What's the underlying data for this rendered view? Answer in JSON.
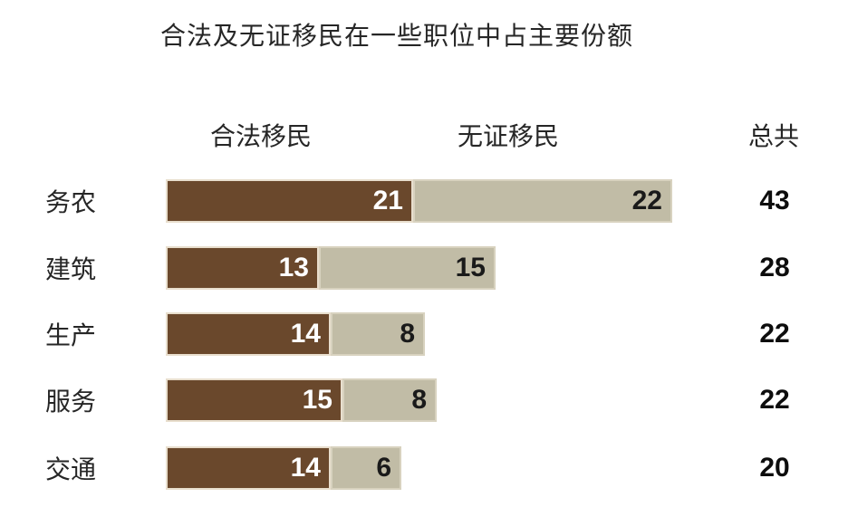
{
  "title": "合法及无证移民在一些职位中占主要份额",
  "chart_data": {
    "type": "bar",
    "orientation": "horizontal",
    "stacked": true,
    "axis_visible": false,
    "grid": false,
    "legend_position": "top-column-headers",
    "value_labels": "inside-end",
    "categories": [
      "务农",
      "建筑",
      "生产",
      "服务",
      "交通"
    ],
    "series": [
      {
        "name": "合法移民",
        "color": "#6A482C",
        "label_color": "#FFFFFF",
        "values": [
          21,
          13,
          14,
          15,
          14
        ]
      },
      {
        "name": "无证移民",
        "color": "#C1BCA6",
        "label_color": "#1A1A1A",
        "values": [
          22,
          15,
          8,
          8,
          6
        ]
      }
    ],
    "totals": {
      "label": "总共",
      "values": [
        43,
        28,
        22,
        22,
        20
      ]
    }
  },
  "colors": {
    "background": "#FFFFFF",
    "title_text": "#262626",
    "category_text": "#262626",
    "total_text": "#0D0D0D",
    "legal_bar": "#6A482C",
    "undocumented_bar": "#C1BCA6",
    "legal_bar_border": "#E8DECD",
    "undocumented_bar_border": "#D8D2BF"
  }
}
